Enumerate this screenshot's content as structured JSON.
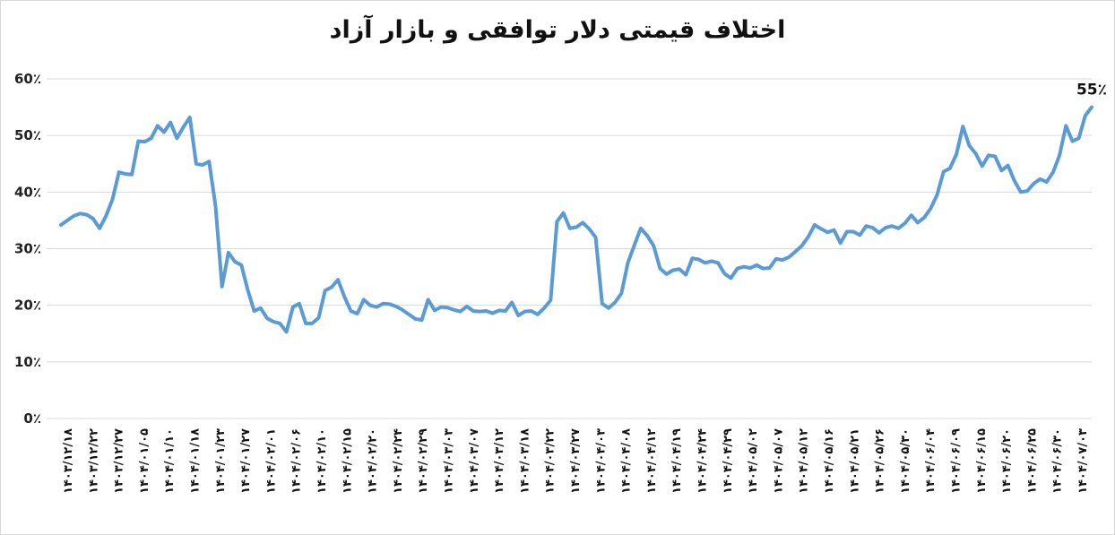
{
  "chart_data": {
    "type": "line",
    "title": "اختلاف قیمتی دلار توافقی و بازار آزاد",
    "xlabel": "",
    "ylabel": "",
    "ylim": [
      0,
      60
    ],
    "y_ticks": [
      "0٪",
      "10٪",
      "20٪",
      "30٪",
      "40٪",
      "50٪",
      "60٪"
    ],
    "grid": true,
    "legend": "none",
    "line_color": "#5b9bd5",
    "x_tick_labels": [
      "۱۴۰۳/۱۲/۱۸",
      "۱۴۰۳/۱۲/۲۲",
      "۱۴۰۳/۱۲/۲۷",
      "۱۴۰۴/۰۱/۰۵",
      "۱۴۰۴/۰۱/۱۰",
      "۱۴۰۴/۰۱/۱۸",
      "۱۴۰۴/۰۱/۲۳",
      "۱۴۰۴/۰۱/۲۷",
      "۱۴۰۴/۰۲/۰۱",
      "۱۴۰۴/۰۲/۰۶",
      "۱۴۰۴/۰۲/۱۰",
      "۱۴۰۴/۰۲/۱۵",
      "۱۴۰۴/۰۲/۲۰",
      "۱۴۰۴/۰۲/۲۴",
      "۱۴۰۴/۰۲/۲۹",
      "۱۴۰۴/۰۳/۰۳",
      "۱۴۰۴/۰۳/۰۷",
      "۱۴۰۴/۰۳/۱۲",
      "۱۴۰۴/۰۳/۱۸",
      "۱۴۰۴/۰۳/۲۲",
      "۱۴۰۴/۰۳/۲۷",
      "۱۴۰۴/۰۴/۰۳",
      "۱۴۰۴/۰۴/۰۸",
      "۱۴۰۴/۰۴/۱۲",
      "۱۴۰۴/۰۴/۱۹",
      "۱۴۰۴/۰۴/۲۴",
      "۱۴۰۴/۰۴/۲۹",
      "۱۴۰۴/۰۵/۰۲",
      "۱۴۰۴/۰۵/۰۷",
      "۱۴۰۴/۰۵/۱۲",
      "۱۴۰۴/۰۵/۱۶",
      "۱۴۰۴/۰۵/۲۱",
      "۱۴۰۴/۰۵/۲۶",
      "۱۴۰۴/۰۵/۳۰",
      "۱۴۰۴/۰۶/۰۴",
      "۱۴۰۴/۰۶/۰۹",
      "۱۴۰۴/۰۶/۱۵",
      "۱۴۰۴/۰۶/۲۰",
      "۱۴۰۴/۰۶/۲۵",
      "۱۴۰۴/۰۶/۳۰",
      "۱۴۰۴/۰۷/۰۳"
    ],
    "values": [
      34.2,
      35.0,
      35.8,
      36.2,
      36.0,
      35.3,
      33.6,
      35.8,
      38.7,
      43.5,
      43.2,
      43.1,
      49.0,
      48.9,
      49.5,
      51.7,
      50.6,
      52.3,
      49.5,
      51.5,
      53.2,
      45.0,
      44.8,
      45.4,
      37.5,
      23.3,
      29.3,
      27.7,
      27.1,
      22.7,
      19.0,
      19.5,
      17.7,
      17.1,
      16.8,
      15.3,
      19.7,
      20.3,
      16.8,
      16.8,
      17.8,
      22.6,
      23.2,
      24.5,
      21.5,
      19.0,
      18.5,
      21.0,
      20.0,
      19.7,
      20.3,
      20.2,
      19.8,
      19.2,
      18.4,
      17.6,
      17.4,
      21.0,
      19.1,
      19.7,
      19.6,
      19.2,
      18.9,
      19.8,
      19.0,
      18.9,
      19.0,
      18.6,
      19.1,
      19.0,
      20.5,
      18.2,
      18.9,
      19.0,
      18.4,
      19.5,
      20.9,
      34.8,
      36.3,
      33.6,
      33.8,
      34.6,
      33.5,
      32.0,
      20.3,
      19.5,
      20.5,
      22.1,
      27.5,
      30.6,
      33.6,
      32.3,
      30.5,
      26.5,
      25.5,
      26.2,
      26.4,
      25.4,
      28.3,
      28.1,
      27.5,
      27.8,
      27.5,
      25.6,
      24.8,
      26.5,
      26.8,
      26.6,
      27.1,
      26.5,
      26.6,
      28.2,
      28.0,
      28.5,
      29.5,
      30.5,
      32.1,
      34.2,
      33.5,
      32.9,
      33.3,
      31.0,
      33.0,
      33.0,
      32.4,
      34.0,
      33.7,
      32.8,
      33.7,
      34.0,
      33.6,
      34.5,
      35.9,
      34.6,
      35.5,
      37.1,
      39.5,
      43.6,
      44.2,
      46.7,
      51.6,
      48.2,
      46.8,
      44.6,
      46.5,
      46.3,
      43.8,
      44.7,
      42.0,
      40.0,
      40.2,
      41.5,
      42.3,
      41.8,
      43.5,
      46.5,
      51.7,
      49.0,
      49.5,
      53.5,
      55.0
    ],
    "last_value_label": "55٪"
  }
}
